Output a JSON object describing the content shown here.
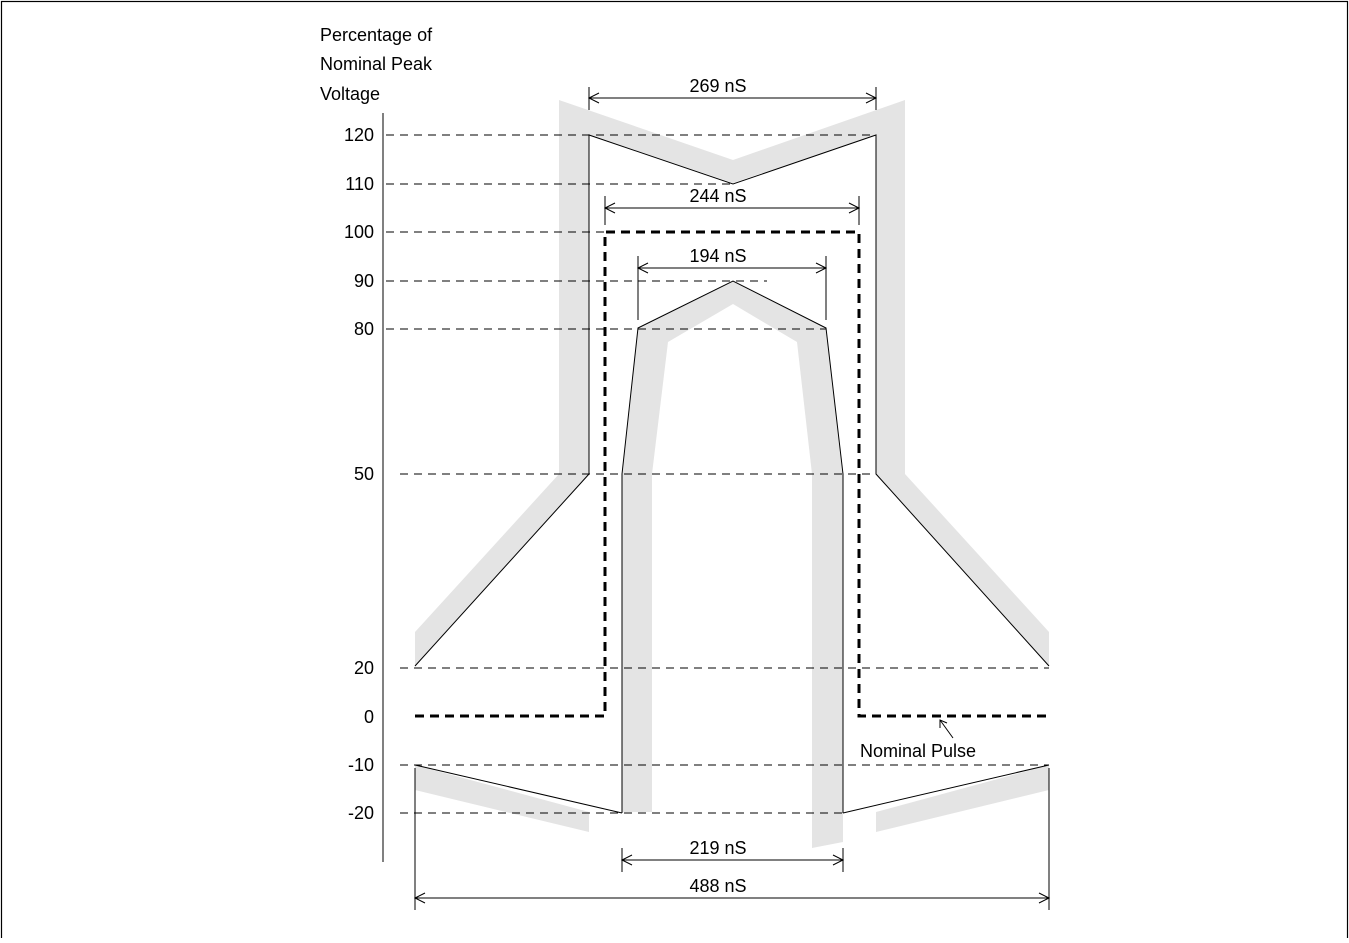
{
  "y_axis": {
    "title_lines": [
      "Percentage of",
      "Nominal Peak",
      "Voltage"
    ],
    "tick_labels": [
      "120",
      "110",
      "100",
      "90",
      "80",
      "50",
      "20",
      "0",
      "-10",
      "-20"
    ]
  },
  "dimensions": {
    "top_width": "269 nS",
    "upper_inner_width": "244 nS",
    "inner_top_width": "194 nS",
    "bottom_inner_width": "219 nS",
    "bottom_total_width": "488 nS"
  },
  "callout": {
    "nominal_pulse": "Nominal Pulse"
  },
  "colors": {
    "line": "#000000",
    "tolerance_band": "#e4e4e4",
    "background": "#ffffff"
  }
}
